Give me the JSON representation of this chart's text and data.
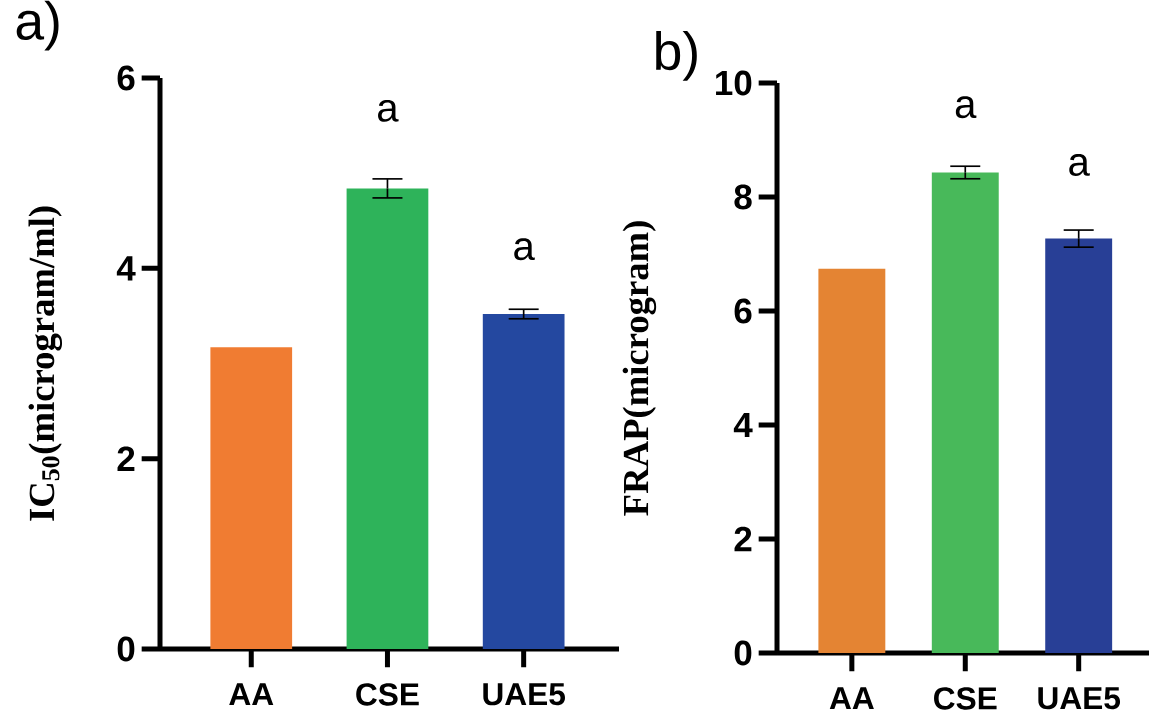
{
  "chart_data": [
    {
      "type": "bar",
      "title": "a)",
      "ylabel": "IC$_{50}$(microgram/ml)",
      "categories": [
        "AA",
        "CSE",
        "UAE5"
      ],
      "values": [
        3.17,
        4.84,
        3.52
      ],
      "colors": [
        "#f07c32",
        "#2eb35a",
        "#2448a0"
      ],
      "errors": [
        null,
        0.1,
        0.05
      ],
      "ylim": [
        0,
        6
      ],
      "yticks": [
        0,
        2,
        4,
        6
      ],
      "annotations": [
        "a",
        "a"
      ]
    },
    {
      "type": "bar",
      "title": "b)",
      "ylabel": "FRAP(microgram)",
      "categories": [
        "AA",
        "CSE",
        "UAE5"
      ],
      "values": [
        6.74,
        8.43,
        7.27
      ],
      "colors": [
        "#e48433",
        "#48b95a",
        "#283f96"
      ],
      "errors": [
        null,
        0.11,
        0.15
      ],
      "ylim": [
        0,
        10
      ],
      "yticks": [
        0,
        2,
        4,
        6,
        8,
        10
      ],
      "annotations": [
        "a",
        "a"
      ]
    }
  ]
}
